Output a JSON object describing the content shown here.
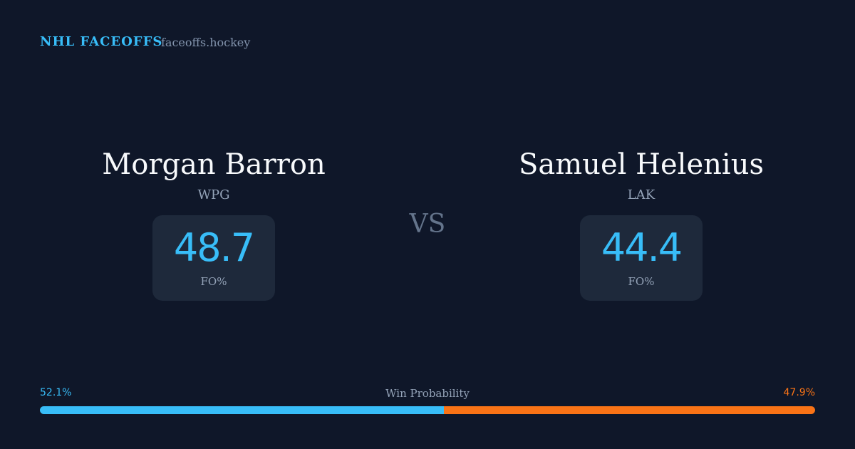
{
  "header": {
    "title": "NHL FACEOFFS",
    "site": "faceoffs.hockey"
  },
  "players": [
    {
      "name": "Morgan Barron",
      "team": "WPG",
      "stat": 48.7,
      "stat_label": "FO%"
    },
    {
      "name": "Samuel Helenius",
      "team": "LAK",
      "stat": 44.4,
      "stat_label": "FO%"
    }
  ],
  "vs": "VS",
  "win_probability": {
    "label": "Win Probability",
    "values": [
      52.1,
      47.9
    ],
    "value_labels": [
      "52.1%",
      "47.9%"
    ],
    "colors": [
      "#38bdf8",
      "#f97316"
    ]
  }
}
